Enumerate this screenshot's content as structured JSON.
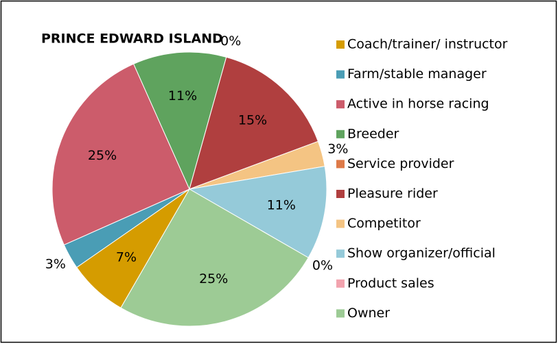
{
  "chart_data": {
    "type": "pie",
    "title": "PRINCE EDWARD ISLAND",
    "categories": [
      "Coach/trainer/ instructor",
      "Farm/stable manager",
      "Active in horse racing",
      "Breeder",
      "Service provider",
      "Pleasure rider",
      "Competitor",
      "Show organizer/official",
      "Product sales",
      "Owner"
    ],
    "values": [
      7,
      3,
      25,
      11,
      0,
      15,
      3,
      11,
      0,
      25
    ],
    "value_labels": [
      "7%",
      "3%",
      "25%",
      "11%",
      "0%",
      "15%",
      "3%",
      "11%",
      "0%",
      "25%"
    ],
    "colors": [
      "#d59c00",
      "#4a9db5",
      "#cc5c6b",
      "#5fa35e",
      "#de7a48",
      "#b03f3f",
      "#f4c483",
      "#95cad9",
      "#f2a3ae",
      "#9dcb95"
    ],
    "legend": "right"
  }
}
